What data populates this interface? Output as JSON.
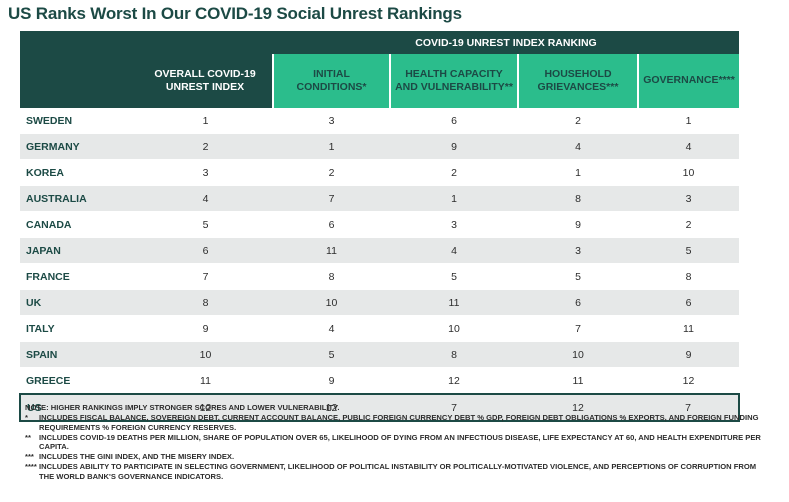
{
  "title": "US Ranks Worst In Our COVID-19 Social Unrest Rankings",
  "chart_data": {
    "type": "table",
    "group_header": "COVID-19 UNREST INDEX RANKING",
    "columns": [
      "OVERALL COVID-19 UNREST INDEX",
      "INITIAL CONDITIONS*",
      "HEALTH CAPACITY AND VULNERABILITY**",
      "HOUSEHOLD GRIEVANCES***",
      "GOVERNANCE****"
    ],
    "rows": [
      {
        "country": "SWEDEN",
        "values": [
          "1",
          "3",
          "6",
          "2",
          "1"
        ]
      },
      {
        "country": "GERMANY",
        "values": [
          "2",
          "1",
          "9",
          "4",
          "4"
        ]
      },
      {
        "country": "KOREA",
        "values": [
          "3",
          "2",
          "2",
          "1",
          "10"
        ]
      },
      {
        "country": "AUSTRALIA",
        "values": [
          "4",
          "7",
          "1",
          "8",
          "3"
        ]
      },
      {
        "country": "CANADA",
        "values": [
          "5",
          "6",
          "3",
          "9",
          "2"
        ]
      },
      {
        "country": "JAPAN",
        "values": [
          "6",
          "11",
          "4",
          "3",
          "5"
        ]
      },
      {
        "country": "FRANCE",
        "values": [
          "7",
          "8",
          "5",
          "5",
          "8"
        ]
      },
      {
        "country": "UK",
        "values": [
          "8",
          "10",
          "11",
          "6",
          "6"
        ]
      },
      {
        "country": "ITALY",
        "values": [
          "9",
          "4",
          "10",
          "7",
          "11"
        ]
      },
      {
        "country": "SPAIN",
        "values": [
          "10",
          "5",
          "8",
          "10",
          "9"
        ]
      },
      {
        "country": "GREECE",
        "values": [
          "11",
          "9",
          "12",
          "11",
          "12"
        ]
      },
      {
        "country": "US",
        "values": [
          "12",
          "12",
          "7",
          "12",
          "7"
        ]
      }
    ]
  },
  "notes": {
    "main": "NOTE: HIGHER RANKINGS IMPLY STRONGER SCORES AND LOWER VULNERABILITY.",
    "items": [
      {
        "mark": "*",
        "text": "INCLUDES FISCAL BALANCE, SOVEREIGN DEBT, CURRENT ACCOUNT BALANCE, PUBLIC FOREIGN CURRENCY DEBT % GDP, FOREIGN DEBT OBLIGATIONS % EXPORTS, AND FOREIGN FUNDING REQUIREMENTS % FOREIGN CURRENCY RESERVES."
      },
      {
        "mark": "**",
        "text": "INCLUDES COVID-19 DEATHS PER MILLION, SHARE OF POPULATION OVER 65, LIKELIHOOD OF DYING FROM AN INFECTIOUS DISEASE, LIFE EXPECTANCY AT 60, AND HEALTH EXPENDITURE PER CAPITA."
      },
      {
        "mark": "***",
        "text": "INCLUDES THE GINI INDEX, AND THE MISERY INDEX."
      },
      {
        "mark": "****",
        "text": "INCLUDES ABILITY TO PARTICIPATE IN SELECTING GOVERNMENT, LIKELIHOOD OF POLITICAL INSTABILITY OR POLITICALLY-MOTIVATED VIOLENCE, AND PERCEPTIONS OF CORRUPTION FROM THE WORLD BANK'S GOVERNANCE INDICATORS."
      }
    ]
  },
  "colors": {
    "dark_teal": "#1c4a45",
    "green": "#2bbd8c",
    "row_shade": "#e6e8e8"
  }
}
